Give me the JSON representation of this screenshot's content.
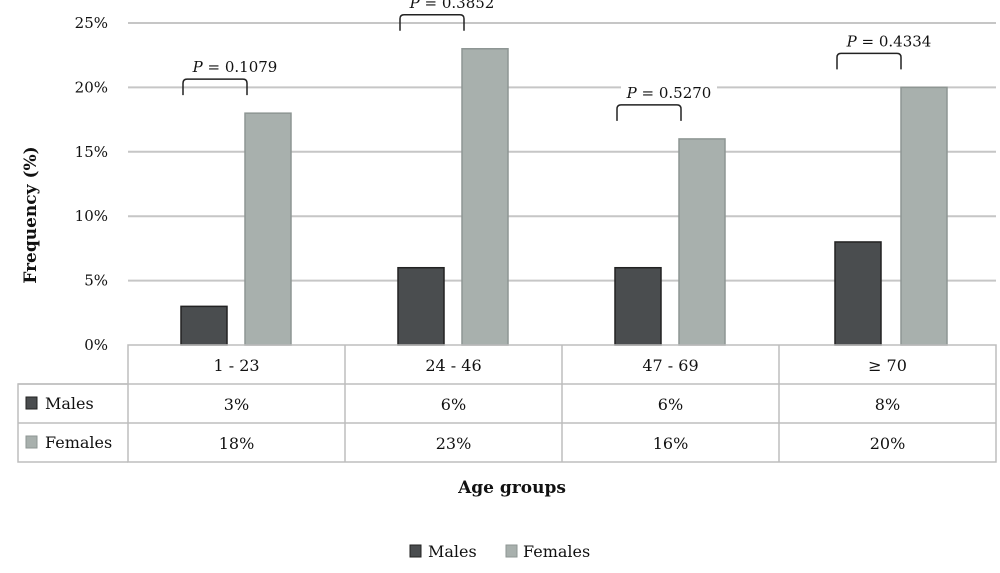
{
  "chart_data": {
    "type": "bar",
    "ylabel": "Frequency (%)",
    "xlabel": "Age groups",
    "ylim": [
      0,
      25
    ],
    "yticks": [
      0,
      5,
      10,
      15,
      20,
      25
    ],
    "ytick_labels": [
      "0%",
      "5%",
      "10%",
      "15%",
      "20%",
      "25%"
    ],
    "categories": [
      "1 - 23",
      "24 - 46",
      "47 - 69",
      "≥ 70"
    ],
    "series": [
      {
        "name": "Males",
        "values": [
          3,
          6,
          6,
          8
        ],
        "labels": [
          "3%",
          "6%",
          "6%",
          "8%"
        ],
        "color": "#4a4d4f"
      },
      {
        "name": "Females",
        "values": [
          18,
          23,
          16,
          20
        ],
        "labels": [
          "18%",
          "23%",
          "16%",
          "20%"
        ],
        "color": "#a8b0ad"
      }
    ],
    "annotations": [
      {
        "prefix": "P",
        "text": " = 0.1079"
      },
      {
        "prefix": "P",
        "text": " = 0.3852"
      },
      {
        "prefix": "P",
        "text": " = 0.5270"
      },
      {
        "prefix": "P",
        "text": " = 0.4334"
      }
    ],
    "grid": true,
    "data_table": true,
    "legend": "bottom"
  }
}
